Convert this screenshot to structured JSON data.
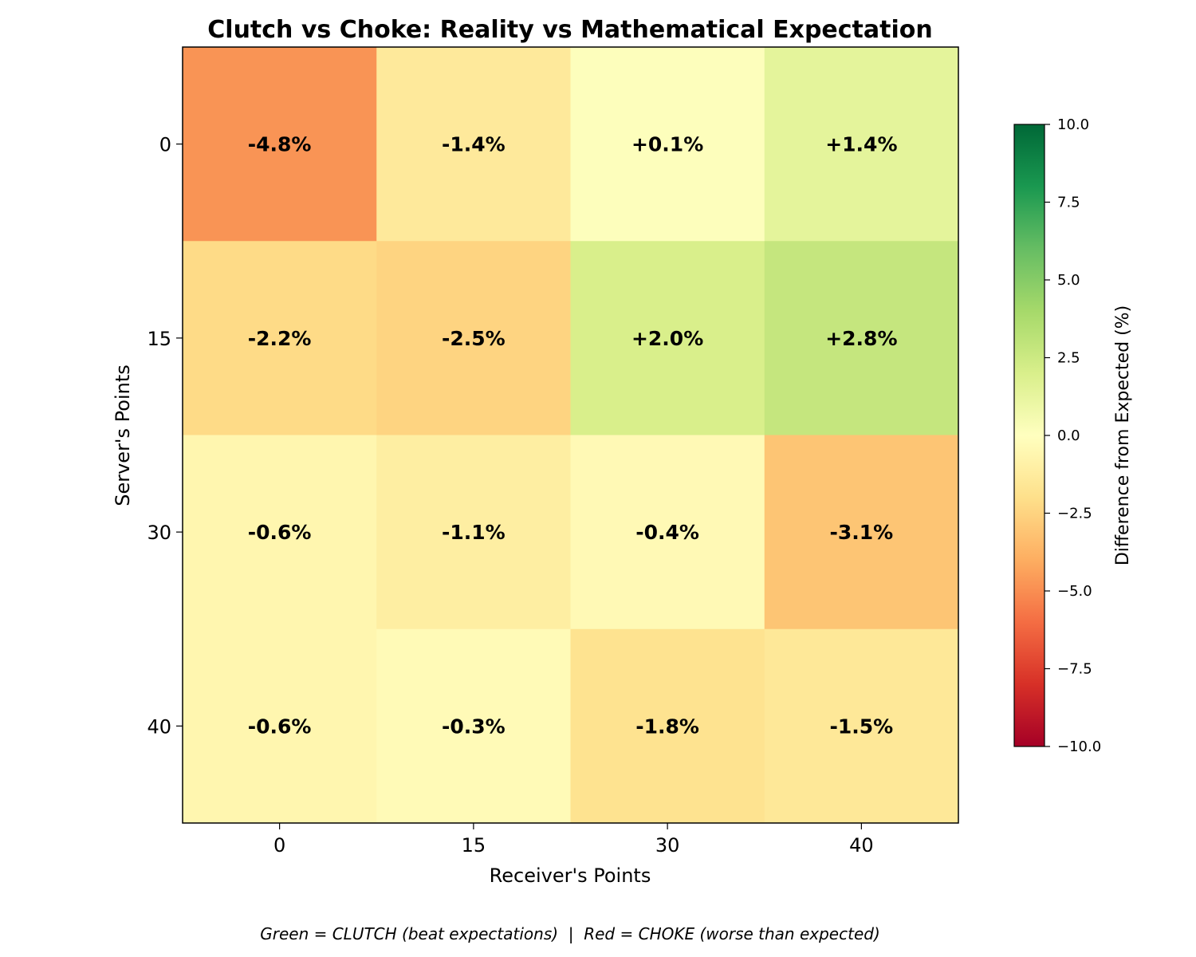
{
  "chart_data": {
    "type": "heatmap",
    "title": "Clutch vs Choke: Reality vs Mathematical Expectation",
    "xlabel": "Receiver's Points",
    "ylabel": "Server's Points",
    "x_categories": [
      "0",
      "15",
      "30",
      "40"
    ],
    "y_categories": [
      "0",
      "15",
      "30",
      "40"
    ],
    "values": [
      [
        -4.8,
        -1.4,
        0.1,
        1.4
      ],
      [
        -2.2,
        -2.5,
        2.0,
        2.8
      ],
      [
        -0.6,
        -1.1,
        -0.4,
        -3.1
      ],
      [
        -0.6,
        -0.3,
        -1.8,
        -1.5
      ]
    ],
    "cell_labels": [
      [
        "-4.8%",
        "-1.4%",
        "+0.1%",
        "+1.4%"
      ],
      [
        "-2.2%",
        "-2.5%",
        "+2.0%",
        "+2.8%"
      ],
      [
        "-0.6%",
        "-1.1%",
        "-0.4%",
        "-3.1%"
      ],
      [
        "-0.6%",
        "-0.3%",
        "-1.8%",
        "-1.5%"
      ]
    ],
    "colormap": "RdYlGn",
    "vmin": -10,
    "vmax": 10,
    "colorbar": {
      "label": "Difference from Expected (%)",
      "ticks": [
        10,
        7.5,
        5,
        2.5,
        0,
        -2.5,
        -5,
        -7.5,
        -10
      ],
      "tick_labels": [
        "10.0",
        "7.5",
        "5.0",
        "2.5",
        "0.0",
        "−2.5",
        "−5.0",
        "−7.5",
        "−10.0"
      ]
    },
    "footnote": "Green = CLUTCH (beat expectations)  |  Red = CHOKE (worse than expected)"
  }
}
